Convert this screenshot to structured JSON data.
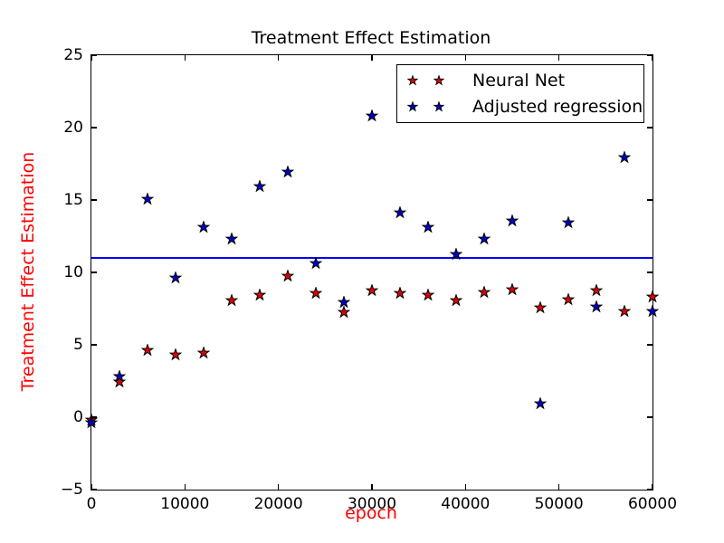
{
  "figure": {
    "title": "Treatment Effect Estimation",
    "title_color": "#000000",
    "background": "#ffffff",
    "axis_color": "#000000",
    "label_color": "#ff0000"
  },
  "chart_data": {
    "type": "scatter",
    "title": "Treatment Effect Estimation",
    "xlabel": "epoch",
    "ylabel": "Treatment Effect Estimation",
    "xlim": [
      0,
      60000
    ],
    "ylim": [
      -5,
      25
    ],
    "grid": false,
    "xticks": [
      0,
      10000,
      20000,
      30000,
      40000,
      50000,
      60000
    ],
    "xtick_labels": [
      "0",
      "10000",
      "20000",
      "30000",
      "40000",
      "50000",
      "60000"
    ],
    "yticks": [
      -5,
      0,
      5,
      10,
      15,
      20,
      25
    ],
    "ytick_labels": [
      "−5",
      "0",
      "5",
      "10",
      "15",
      "20",
      "25"
    ],
    "x": [
      0,
      3000,
      6000,
      9000,
      12000,
      15000,
      18000,
      21000,
      24000,
      27000,
      30000,
      33000,
      36000,
      39000,
      42000,
      45000,
      48000,
      51000,
      54000,
      57000,
      60000
    ],
    "series": [
      {
        "name": "Neural Net",
        "marker": "star",
        "color": "#dd0000",
        "edge_color": "#000000",
        "values": [
          -0.1,
          2.5,
          4.7,
          4.4,
          4.5,
          8.1,
          8.5,
          9.8,
          8.6,
          7.3,
          8.8,
          8.6,
          8.5,
          8.1,
          8.7,
          8.9,
          7.6,
          8.2,
          8.8,
          7.4,
          8.4
        ]
      },
      {
        "name": "Adjusted regression",
        "marker": "star",
        "color": "#0000cc",
        "edge_color": "#000000",
        "values": [
          -0.3,
          2.9,
          15.1,
          9.7,
          13.2,
          12.4,
          16.0,
          17.0,
          10.7,
          8.0,
          20.9,
          14.2,
          13.2,
          11.3,
          12.4,
          13.6,
          1.0,
          13.5,
          7.7,
          18.0,
          7.4
        ]
      }
    ],
    "hline": {
      "y": 11.0,
      "color": "#0000ff"
    },
    "legend": {
      "position": "upper center",
      "entries": [
        "Neural Net",
        "Adjusted regression"
      ]
    }
  }
}
